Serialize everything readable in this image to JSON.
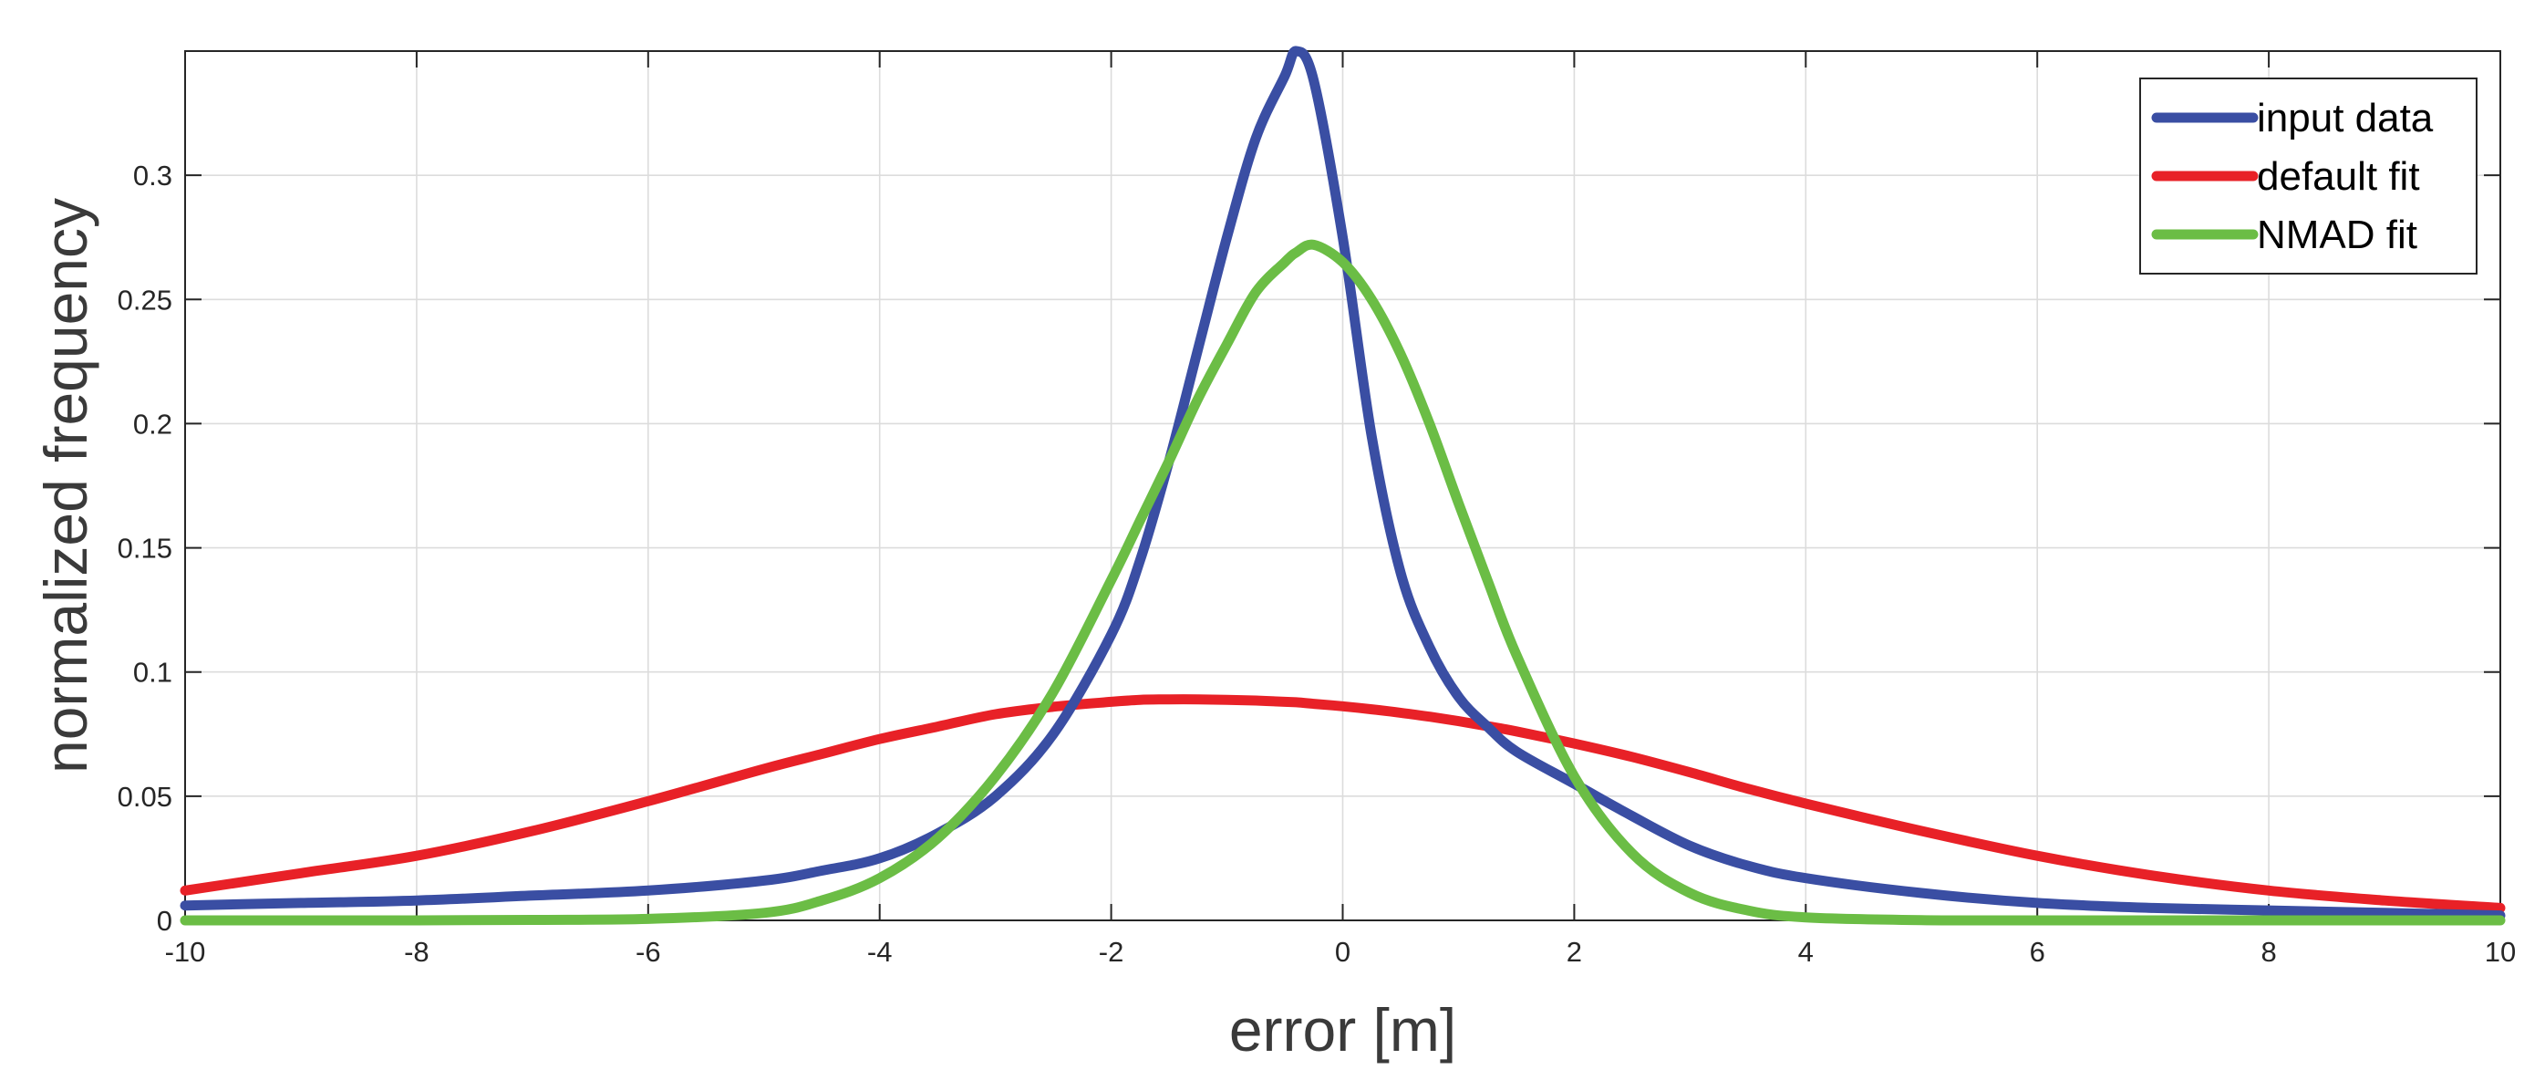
{
  "chart_data": {
    "type": "line",
    "xlabel": "error [m]",
    "ylabel": "normalized frequency",
    "xlim": [
      -10,
      10
    ],
    "ylim": [
      0,
      0.35
    ],
    "grid": true,
    "legend_placement": "top-right",
    "x_ticks": [
      -10,
      -8,
      -6,
      -4,
      -2,
      0,
      2,
      4,
      6,
      8,
      10
    ],
    "x_tick_labels": [
      "-10",
      "-8",
      "-6",
      "-4",
      "-2",
      "0",
      "2",
      "4",
      "6",
      "8",
      "10"
    ],
    "y_ticks": [
      0,
      0.05,
      0.1,
      0.15,
      0.2,
      0.25,
      0.3
    ],
    "y_tick_labels": [
      "0",
      "0.05",
      "0.1",
      "0.15",
      "0.2",
      "0.25",
      "0.3"
    ],
    "x": [
      -10,
      -9,
      -8,
      -7,
      -6,
      -5,
      -4.5,
      -4,
      -3.5,
      -3,
      -2.5,
      -2,
      -1.75,
      -1.5,
      -1.25,
      -1,
      -0.75,
      -0.5,
      -0.4,
      -0.25,
      0,
      0.25,
      0.5,
      0.75,
      1,
      1.25,
      1.5,
      2,
      2.5,
      3,
      3.5,
      4,
      5,
      6,
      7,
      8,
      9,
      10
    ],
    "series": [
      {
        "name": "input data",
        "color": "#3a4ea3",
        "values": [
          0.006,
          0.007,
          0.008,
          0.01,
          0.012,
          0.016,
          0.02,
          0.025,
          0.035,
          0.05,
          0.075,
          0.115,
          0.145,
          0.185,
          0.23,
          0.275,
          0.315,
          0.34,
          0.35,
          0.338,
          0.275,
          0.195,
          0.14,
          0.11,
          0.09,
          0.078,
          0.068,
          0.055,
          0.042,
          0.03,
          0.022,
          0.017,
          0.011,
          0.007,
          0.005,
          0.004,
          0.003,
          0.002
        ]
      },
      {
        "name": "default fit",
        "color": "#e82127",
        "values": [
          0.012,
          0.019,
          0.026,
          0.036,
          0.048,
          0.061,
          0.067,
          0.073,
          0.078,
          0.083,
          0.086,
          0.088,
          0.0888,
          0.089,
          0.089,
          0.0888,
          0.0885,
          0.088,
          0.0878,
          0.0872,
          0.0862,
          0.085,
          0.0836,
          0.082,
          0.0802,
          0.0782,
          0.0761,
          0.0712,
          0.0658,
          0.0596,
          0.053,
          0.047,
          0.036,
          0.026,
          0.018,
          0.012,
          0.008,
          0.005
        ]
      },
      {
        "name": "NMAD fit",
        "color": "#6bbd45",
        "values": [
          0,
          0,
          0,
          0.0002,
          0.0006,
          0.003,
          0.008,
          0.017,
          0.033,
          0.058,
          0.092,
          0.137,
          0.161,
          0.185,
          0.21,
          0.232,
          0.253,
          0.265,
          0.269,
          0.272,
          0.265,
          0.25,
          0.228,
          0.2,
          0.168,
          0.137,
          0.107,
          0.058,
          0.027,
          0.011,
          0.004,
          0.0012,
          0.0001,
          0,
          0,
          0,
          0,
          0
        ]
      }
    ]
  }
}
